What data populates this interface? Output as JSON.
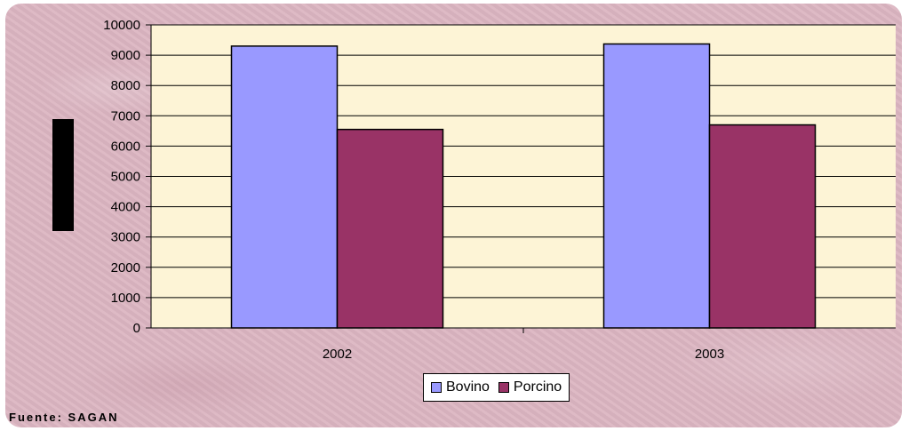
{
  "source_note": "Fuente: SAGAN",
  "colors": {
    "plot_background": "#fdf4d6",
    "frame_background": "#dcb6c2",
    "gridline": "#000000"
  },
  "chart_data": {
    "type": "bar",
    "title": "",
    "xlabel": "",
    "ylabel": "",
    "categories": [
      "2002",
      "2003"
    ],
    "series": [
      {
        "name": "Bovino",
        "color": "#9999ff",
        "values": [
          9300,
          9370
        ]
      },
      {
        "name": "Porcino",
        "color": "#993366",
        "values": [
          6550,
          6700
        ]
      }
    ],
    "ylim": [
      0,
      10000
    ],
    "yticks": [
      0,
      1000,
      2000,
      3000,
      4000,
      5000,
      6000,
      7000,
      8000,
      9000,
      10000
    ],
    "grid": true,
    "legend_position": "bottom-center"
  }
}
